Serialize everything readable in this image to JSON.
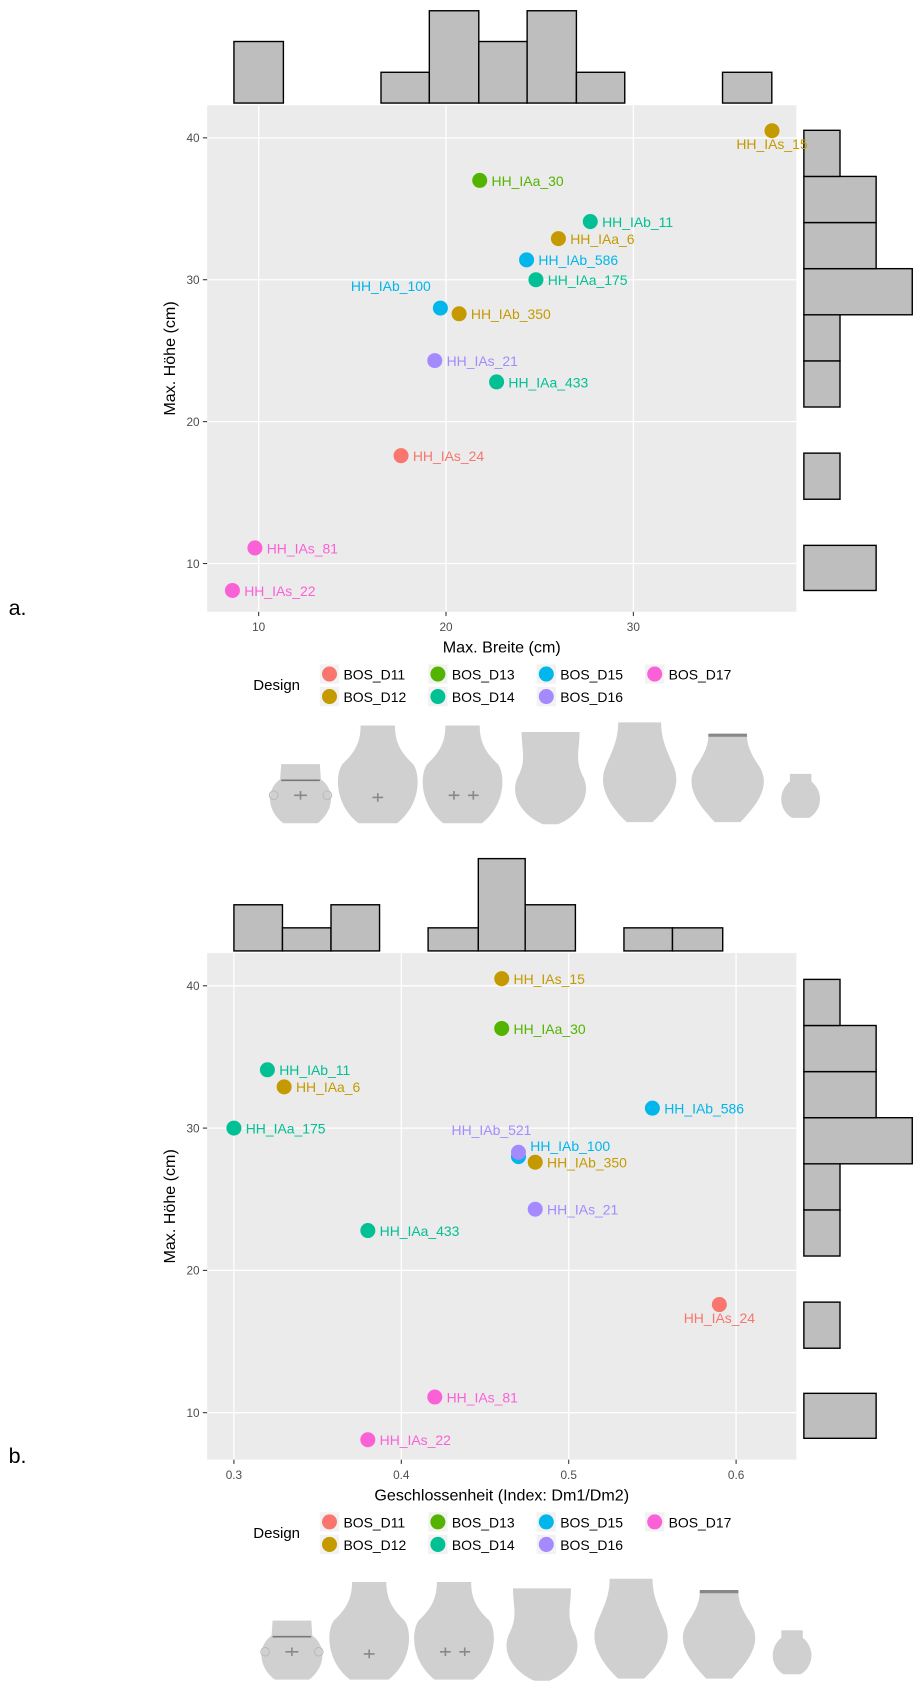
{
  "chart_data": [
    {
      "type": "scatter",
      "panel_label": "a.",
      "x_label": "Max. Breite (cm)",
      "y_label": "Max. Höhe (cm)",
      "xlim": [
        7.25,
        38.7
      ],
      "ylim": [
        6.6,
        42.3
      ],
      "xticks": [
        10,
        20,
        30
      ],
      "yticks": [
        10,
        20,
        30,
        40
      ],
      "grid": true,
      "legend_title": "Design",
      "series": [
        {
          "name": "BOS_D11",
          "color": "#F8766D",
          "x": [
            17.6
          ],
          "values": [
            17.6
          ],
          "labels": [
            "HH_IAs_24"
          ]
        },
        {
          "name": "BOS_D12",
          "color": "#C49A00",
          "x": [
            37.4,
            26.0,
            20.7
          ],
          "values": [
            40.5,
            32.9,
            27.6
          ],
          "labels": [
            "HH_IAs_15",
            "HH_IAa_6",
            "HH_IAb_350"
          ]
        },
        {
          "name": "BOS_D13",
          "color": "#53B400",
          "x": [
            21.8
          ],
          "values": [
            37.0
          ],
          "labels": [
            "HH_IAa_30"
          ]
        },
        {
          "name": "BOS_D14",
          "color": "#00C094",
          "x": [
            27.7,
            24.8,
            22.7
          ],
          "values": [
            34.1,
            30.0,
            22.8
          ],
          "labels": [
            "HH_IAb_11",
            "HH_IAa_175",
            "HH_IAa_433"
          ]
        },
        {
          "name": "BOS_D15",
          "color": "#00B6EB",
          "x": [
            24.3,
            19.7
          ],
          "values": [
            31.4,
            28.0
          ],
          "labels": [
            "HH_IAb_586",
            "HH_IAb_100"
          ]
        },
        {
          "name": "BOS_D16",
          "color": "#A58AFF",
          "x": [
            19.4
          ],
          "values": [
            24.3
          ],
          "labels": [
            "HH_IAs_21"
          ]
        },
        {
          "name": "BOS_D17",
          "color": "#FB61D7",
          "x": [
            9.8,
            8.6
          ],
          "values": [
            11.1,
            8.1
          ],
          "labels": [
            "HH_IAs_81",
            "HH_IAs_22"
          ]
        }
      ],
      "top_histogram": {
        "bins": [
          8.68,
          11.32,
          13.9,
          16.53,
          19.11,
          21.75,
          24.33,
          26.96,
          29.54,
          32.18,
          34.76,
          37.39
        ],
        "counts": [
          2,
          0,
          0,
          1,
          3,
          2,
          3,
          1,
          0,
          0,
          1
        ],
        "ylim": [
          0,
          3
        ]
      },
      "right_histogram": {
        "bins": [
          8.1,
          11.28,
          14.53,
          17.78,
          21.03,
          24.28,
          27.53,
          30.78,
          34.03,
          37.28,
          40.53
        ],
        "counts": [
          2,
          0,
          1,
          0,
          1,
          1,
          3,
          2,
          2,
          1
        ],
        "ylim": [
          0,
          3
        ]
      }
    },
    {
      "type": "scatter",
      "panel_label": "b.",
      "x_label": "Geschlossenheit (Index: Dm1/Dm2)",
      "y_label": "Max. Höhe (cm)",
      "xlim": [
        0.284,
        0.636
      ],
      "ylim": [
        6.7,
        42.3
      ],
      "xticks": [
        0.3,
        0.4,
        0.5,
        0.6
      ],
      "yticks": [
        10,
        20,
        30,
        40
      ],
      "grid": true,
      "legend_title": "Design",
      "series": [
        {
          "name": "BOS_D11",
          "color": "#F8766D",
          "x": [
            0.59
          ],
          "values": [
            17.6
          ],
          "labels": [
            "HH_IAs_24"
          ]
        },
        {
          "name": "BOS_D12",
          "color": "#C49A00",
          "x": [
            0.46,
            0.33,
            0.48
          ],
          "values": [
            40.5,
            32.9,
            27.6
          ],
          "labels": [
            "HH_IAs_15",
            "HH_IAa_6",
            "HH_IAb_350"
          ]
        },
        {
          "name": "BOS_D13",
          "color": "#53B400",
          "x": [
            0.46
          ],
          "values": [
            37.0
          ],
          "labels": [
            "HH_IAa_30"
          ]
        },
        {
          "name": "BOS_D14",
          "color": "#00C094",
          "x": [
            0.32,
            0.3,
            0.38
          ],
          "values": [
            34.1,
            30.0,
            22.8
          ],
          "labels": [
            "HH_IAb_11",
            "HH_IAa_175",
            "HH_IAa_433"
          ]
        },
        {
          "name": "BOS_D15",
          "color": "#00B6EB",
          "x": [
            0.55,
            0.47
          ],
          "values": [
            31.4,
            28.0
          ],
          "labels": [
            "HH_IAb_586",
            "HH_IAb_100"
          ]
        },
        {
          "name": "BOS_D16",
          "color": "#A58AFF",
          "x": [
            0.48,
            0.47
          ],
          "values": [
            24.3,
            28.3
          ],
          "labels": [
            "HH_IAs_21",
            "HH_IAb_521"
          ]
        },
        {
          "name": "BOS_D17",
          "color": "#FB61D7",
          "x": [
            0.42,
            0.38
          ],
          "values": [
            11.1,
            8.1
          ],
          "labels": [
            "HH_IAs_81",
            "HH_IAs_22"
          ]
        }
      ],
      "top_histogram": {
        "bins": [
          0.3,
          0.329,
          0.358,
          0.387,
          0.416,
          0.446,
          0.474,
          0.504,
          0.533,
          0.562,
          0.592,
          0.621
        ],
        "counts": [
          2,
          1,
          2,
          0,
          1,
          4,
          2,
          0,
          1,
          1,
          0
        ],
        "ylim": [
          0,
          4
        ]
      },
      "right_histogram": {
        "bins": [
          8.2,
          11.36,
          14.53,
          17.77,
          21.01,
          24.25,
          27.49,
          30.73,
          33.97,
          37.21,
          40.45
        ],
        "counts": [
          2,
          0,
          1,
          0,
          1,
          1,
          3,
          2,
          2,
          1
        ],
        "ylim": [
          0,
          3
        ]
      }
    }
  ]
}
